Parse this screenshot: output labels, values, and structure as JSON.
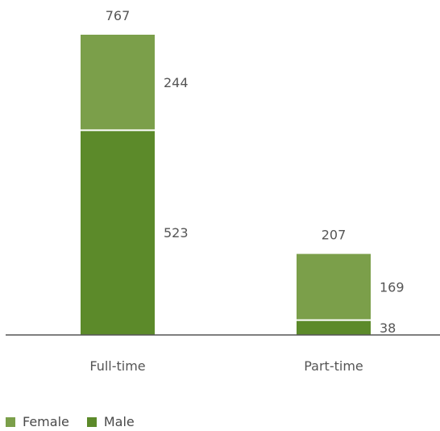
{
  "chart_data": {
    "type": "bar",
    "stacked": true,
    "categories": [
      "Full-time",
      "Part-time"
    ],
    "series": [
      {
        "name": "Male",
        "values": [
          523,
          38
        ],
        "color": "#5c8a2a"
      },
      {
        "name": "Female",
        "values": [
          244,
          169
        ],
        "color": "#7b9f4a"
      }
    ],
    "totals": [
      767,
      207
    ],
    "title": "",
    "xlabel": "",
    "ylabel": "",
    "ylim": [
      0,
      767
    ],
    "grid": false,
    "legend_position": "bottom-left",
    "axis_color": "#555555",
    "text_color": "#555555"
  }
}
